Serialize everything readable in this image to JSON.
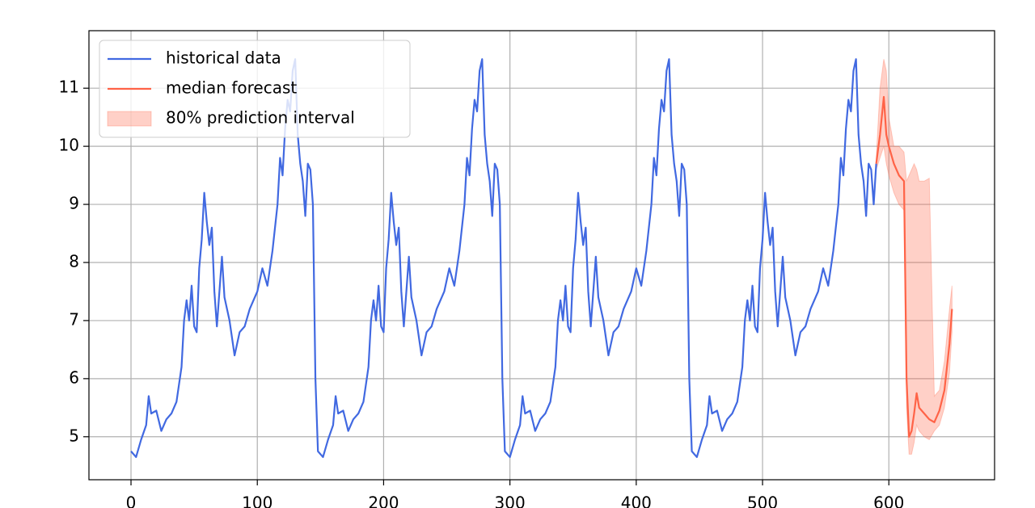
{
  "chart_data": {
    "type": "line",
    "xlim": [
      -33.3,
      683.7
    ],
    "ylim": [
      4.26,
      11.99
    ],
    "xticks": [
      0,
      100,
      200,
      300,
      400,
      500,
      600
    ],
    "yticks": [
      5,
      6,
      7,
      8,
      9,
      10,
      11
    ],
    "grid": true,
    "legend": "upper left",
    "series": [
      {
        "name": "historical data",
        "color": "#4169e1",
        "x": [
          0,
          4,
          8,
          12,
          14,
          16,
          20,
          24,
          28,
          32,
          36,
          40,
          42,
          44,
          46,
          48,
          50,
          52,
          54,
          56,
          58,
          60,
          62,
          64,
          66,
          68,
          72,
          74,
          78,
          82,
          86,
          90,
          94,
          100,
          104,
          108,
          112,
          116,
          118,
          120,
          122,
          124,
          126,
          128,
          130,
          132,
          134,
          136,
          138,
          140,
          142,
          144,
          146,
          148,
          152,
          156,
          160,
          162,
          164,
          168,
          172,
          176,
          180,
          184,
          188,
          190,
          192,
          194,
          196,
          198,
          200,
          202,
          204,
          206,
          208,
          210,
          212,
          214,
          216,
          220,
          222,
          226,
          230,
          234,
          238,
          242,
          248,
          252,
          256,
          260,
          264,
          266,
          268,
          270,
          272,
          274,
          276,
          278,
          280,
          282,
          284,
          286,
          288,
          290,
          292,
          294,
          296,
          300,
          304,
          308,
          310,
          312,
          316,
          320,
          324,
          328,
          332,
          336,
          338,
          340,
          342,
          344,
          346,
          348,
          350,
          352,
          354,
          356,
          358,
          360,
          362,
          364,
          368,
          370,
          374,
          378,
          382,
          386,
          390,
          396,
          400,
          404,
          408,
          412,
          414,
          416,
          418,
          420,
          422,
          424,
          426,
          428,
          430,
          432,
          434,
          436,
          438,
          440,
          442,
          444,
          448,
          452,
          456,
          458,
          460,
          464,
          468,
          472,
          476,
          480,
          484,
          486,
          488,
          490,
          492,
          494,
          496,
          498,
          500,
          502,
          504,
          506,
          508,
          510,
          512,
          516,
          518,
          522,
          526,
          530,
          534,
          538,
          544,
          548,
          552,
          556,
          560,
          562,
          564,
          566,
          568,
          570,
          572,
          574,
          576,
          578,
          580,
          582,
          584,
          586,
          588,
          590
        ],
        "values": [
          4.75,
          4.65,
          4.95,
          5.2,
          5.7,
          5.4,
          5.45,
          5.1,
          5.3,
          5.4,
          5.6,
          6.2,
          7.0,
          7.35,
          7.0,
          7.6,
          6.9,
          6.8,
          7.9,
          8.4,
          9.2,
          8.7,
          8.3,
          8.6,
          7.5,
          6.9,
          8.1,
          7.4,
          7.0,
          6.4,
          6.8,
          6.9,
          7.2,
          7.5,
          7.9,
          7.6,
          8.2,
          9.0,
          9.8,
          9.5,
          10.3,
          10.8,
          10.6,
          11.3,
          11.5,
          10.2,
          9.7,
          9.4,
          8.8,
          9.7,
          9.6,
          9.0,
          6.0,
          4.75,
          4.65,
          4.95,
          5.2,
          5.7,
          5.4,
          5.45,
          5.1,
          5.3,
          5.4,
          5.6,
          6.2,
          7.0,
          7.35,
          7.0,
          7.6,
          6.9,
          6.8,
          7.9,
          8.4,
          9.2,
          8.7,
          8.3,
          8.6,
          7.5,
          6.9,
          8.1,
          7.4,
          7.0,
          6.4,
          6.8,
          6.9,
          7.2,
          7.5,
          7.9,
          7.6,
          8.2,
          9.0,
          9.8,
          9.5,
          10.3,
          10.8,
          10.6,
          11.3,
          11.5,
          10.2,
          9.7,
          9.4,
          8.8,
          9.7,
          9.6,
          9.0,
          6.0,
          4.75,
          4.65,
          4.95,
          5.2,
          5.7,
          5.4,
          5.45,
          5.1,
          5.3,
          5.4,
          5.6,
          6.2,
          7.0,
          7.35,
          7.0,
          7.6,
          6.9,
          6.8,
          7.9,
          8.4,
          9.2,
          8.7,
          8.3,
          8.6,
          7.5,
          6.9,
          8.1,
          7.4,
          7.0,
          6.4,
          6.8,
          6.9,
          7.2,
          7.5,
          7.9,
          7.6,
          8.2,
          9.0,
          9.8,
          9.5,
          10.3,
          10.8,
          10.6,
          11.3,
          11.5,
          10.2,
          9.7,
          9.4,
          8.8,
          9.7,
          9.6,
          9.0,
          6.0,
          4.75,
          4.65,
          4.95,
          5.2,
          5.7,
          5.4,
          5.45,
          5.1,
          5.3,
          5.4,
          5.6,
          6.2,
          7.0,
          7.35,
          7.0,
          7.6,
          6.9,
          6.8,
          7.9,
          8.4,
          9.2,
          8.7,
          8.3,
          8.6,
          7.5,
          6.9,
          8.1,
          7.4,
          7.0,
          6.4,
          6.8,
          6.9,
          7.2,
          7.5,
          7.9,
          7.6,
          8.2,
          9.0,
          9.8,
          9.5,
          10.3,
          10.8,
          10.6,
          11.3,
          11.5,
          10.2,
          9.7,
          9.4,
          8.8,
          9.7,
          9.6,
          9.0,
          9.7
        ]
      },
      {
        "name": "median forecast",
        "color": "#ff6347",
        "x": [
          590,
          593,
          596,
          598,
          600,
          604,
          608,
          612,
          614,
          616,
          618,
          620,
          622,
          624,
          628,
          632,
          636,
          640,
          644,
          648,
          650
        ],
        "values": [
          9.7,
          10.2,
          10.85,
          10.2,
          10.0,
          9.7,
          9.5,
          9.4,
          6.0,
          5.0,
          5.1,
          5.4,
          5.75,
          5.5,
          5.4,
          5.3,
          5.25,
          5.45,
          5.8,
          6.6,
          7.2
        ]
      },
      {
        "name": "80% prediction interval",
        "type": "band",
        "color": "#ff6347",
        "alpha": 0.3,
        "x": [
          590,
          593,
          596,
          598,
          600,
          604,
          608,
          612,
          614,
          616,
          618,
          620,
          622,
          624,
          628,
          632,
          636,
          640,
          644,
          648,
          650
        ],
        "lower": [
          9.6,
          9.8,
          10.0,
          9.7,
          9.5,
          9.2,
          9.0,
          8.9,
          5.5,
          4.7,
          4.7,
          4.9,
          5.2,
          5.1,
          5.0,
          4.95,
          5.1,
          5.2,
          5.5,
          6.1,
          6.8
        ],
        "upper": [
          9.8,
          11.0,
          11.5,
          11.3,
          10.5,
          10.0,
          10.0,
          9.9,
          9.4,
          9.5,
          9.6,
          9.7,
          9.6,
          9.4,
          9.4,
          9.45,
          5.7,
          5.8,
          6.3,
          7.2,
          7.6
        ]
      }
    ]
  }
}
